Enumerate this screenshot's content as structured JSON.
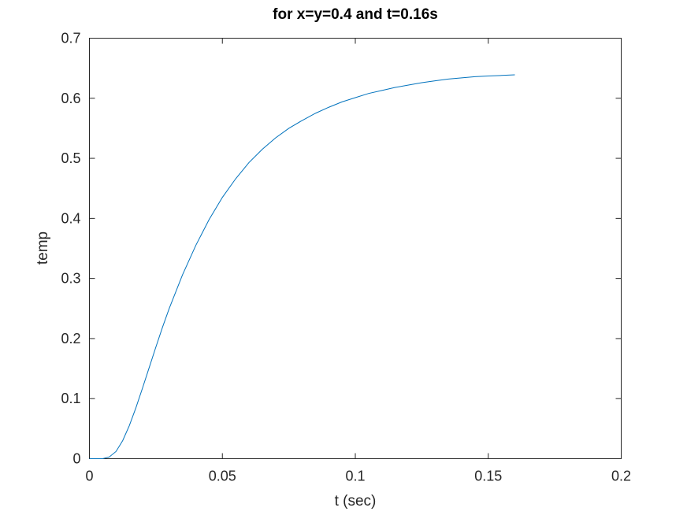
{
  "chart_data": {
    "type": "line",
    "title": "for x=y=0.4 and t=0.16s",
    "xlabel": "t (sec)",
    "ylabel": "temp",
    "xlim": [
      0,
      0.2
    ],
    "ylim": [
      0,
      0.7
    ],
    "xticks": [
      0,
      0.05,
      0.1,
      0.15,
      0.2
    ],
    "xtick_labels": [
      "0",
      "0.05",
      "0.1",
      "0.15",
      "0.2"
    ],
    "yticks": [
      0,
      0.1,
      0.2,
      0.3,
      0.4,
      0.5,
      0.6,
      0.7
    ],
    "ytick_labels": [
      "0",
      "0.1",
      "0.2",
      "0.3",
      "0.4",
      "0.5",
      "0.6",
      "0.7"
    ],
    "grid": false,
    "box": true,
    "series": [
      {
        "color": "#0072BD",
        "x": [
          0,
          0.005,
          0.0075,
          0.01,
          0.0125,
          0.015,
          0.0175,
          0.02,
          0.0225,
          0.025,
          0.0275,
          0.03,
          0.035,
          0.04,
          0.045,
          0.05,
          0.055,
          0.06,
          0.065,
          0.07,
          0.075,
          0.08,
          0.085,
          0.09,
          0.095,
          0.1,
          0.105,
          0.11,
          0.115,
          0.12,
          0.125,
          0.13,
          0.135,
          0.14,
          0.145,
          0.15,
          0.155,
          0.16
        ],
        "y": [
          0,
          0.0,
          0.003,
          0.012,
          0.03,
          0.055,
          0.085,
          0.118,
          0.152,
          0.186,
          0.219,
          0.25,
          0.306,
          0.355,
          0.398,
          0.435,
          0.466,
          0.493,
          0.515,
          0.534,
          0.55,
          0.563,
          0.575,
          0.585,
          0.594,
          0.601,
          0.608,
          0.613,
          0.618,
          0.622,
          0.626,
          0.629,
          0.632,
          0.634,
          0.636,
          0.637,
          0.638,
          0.639
        ]
      }
    ]
  }
}
